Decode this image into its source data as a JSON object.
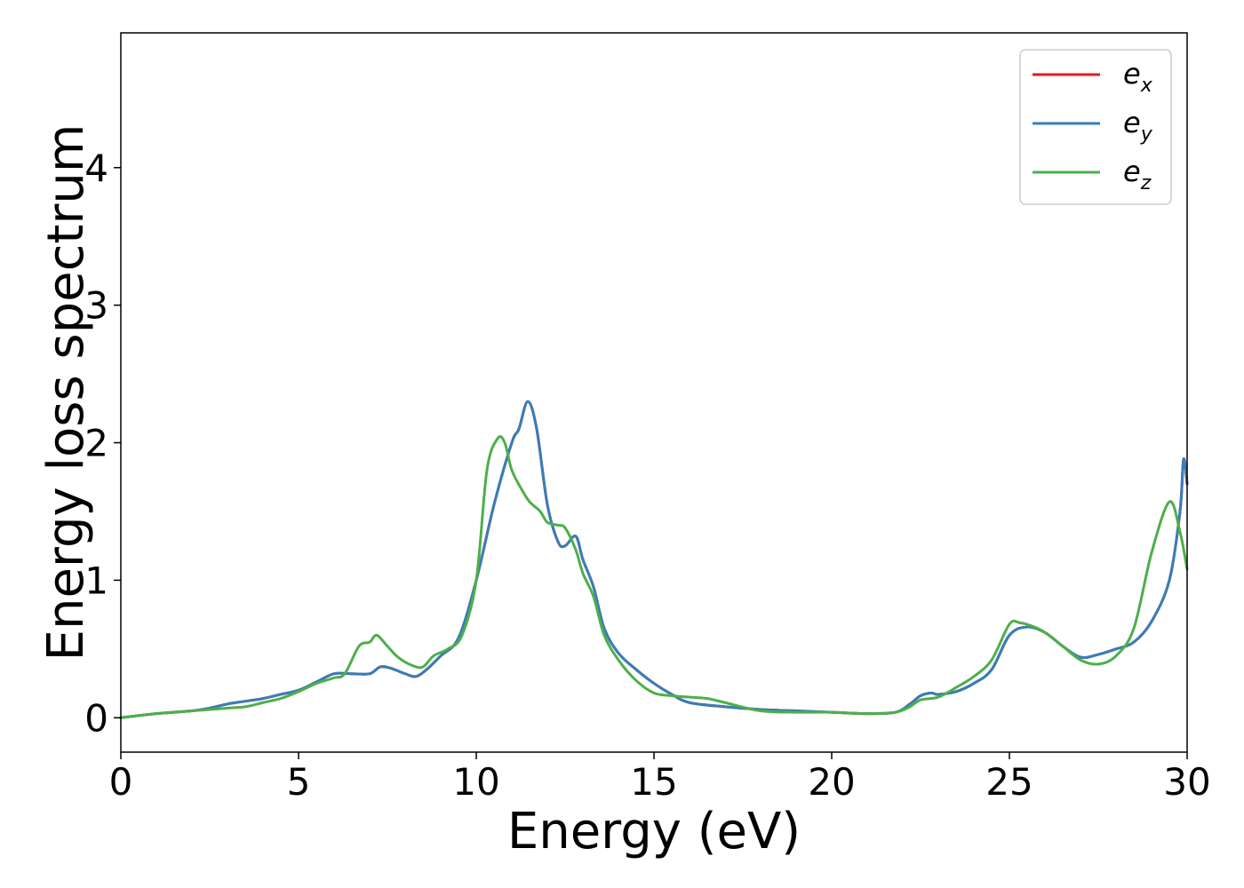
{
  "chart_data": {
    "type": "line",
    "title": "",
    "xlabel": "Energy (eV)",
    "ylabel": "Energy loss spectrum",
    "xlim": [
      0,
      30
    ],
    "ylim": [
      -0.25,
      4.98
    ],
    "xticks": [
      0,
      5,
      10,
      15,
      20,
      25,
      30
    ],
    "xtick_labels": [
      "0",
      "5",
      "10",
      "15",
      "20",
      "25",
      "30"
    ],
    "yticks": [
      0,
      1,
      2,
      3,
      4
    ],
    "ytick_labels": [
      "0",
      "1",
      "2",
      "3",
      "4"
    ],
    "grid": false,
    "legend_position": "top-right",
    "series": [
      {
        "name": "e",
        "subscript": "x",
        "color": "#e41a1c",
        "x": [
          0,
          1,
          2,
          2.5,
          3,
          3.5,
          4,
          4.5,
          5,
          5.5,
          6,
          6.5,
          7,
          7.3,
          7.6,
          8,
          8.3,
          8.6,
          9,
          9.5,
          10,
          10.5,
          11,
          11.2,
          11.45,
          11.7,
          12,
          12.3,
          12.5,
          12.8,
          13,
          13.3,
          13.6,
          14,
          14.5,
          15,
          15.5,
          16,
          17,
          18,
          19,
          20,
          21,
          21.8,
          22.2,
          22.5,
          22.8,
          23,
          23.5,
          24,
          24.5,
          25,
          25.5,
          26,
          26.5,
          27,
          27.5,
          28,
          28.5,
          29,
          29.5,
          29.8,
          29.9,
          30
        ],
        "y": [
          0,
          0.03,
          0.05,
          0.07,
          0.1,
          0.12,
          0.14,
          0.17,
          0.2,
          0.26,
          0.32,
          0.32,
          0.32,
          0.37,
          0.36,
          0.32,
          0.3,
          0.35,
          0.45,
          0.58,
          1.0,
          1.55,
          2.0,
          2.1,
          2.3,
          2.1,
          1.55,
          1.28,
          1.25,
          1.32,
          1.15,
          0.95,
          0.65,
          0.47,
          0.35,
          0.25,
          0.17,
          0.11,
          0.08,
          0.06,
          0.05,
          0.04,
          0.03,
          0.04,
          0.1,
          0.16,
          0.18,
          0.17,
          0.19,
          0.25,
          0.35,
          0.6,
          0.66,
          0.62,
          0.52,
          0.44,
          0.46,
          0.5,
          0.55,
          0.7,
          1.0,
          1.5,
          1.88,
          1.7
        ]
      },
      {
        "name": "e",
        "subscript": "y",
        "color": "#377eb8",
        "x": [
          0,
          1,
          2,
          2.5,
          3,
          3.5,
          4,
          4.5,
          5,
          5.5,
          6,
          6.5,
          7,
          7.3,
          7.6,
          8,
          8.3,
          8.6,
          9,
          9.5,
          10,
          10.5,
          11,
          11.2,
          11.45,
          11.7,
          12,
          12.3,
          12.5,
          12.8,
          13,
          13.3,
          13.6,
          14,
          14.5,
          15,
          15.5,
          16,
          17,
          18,
          19,
          20,
          21,
          21.8,
          22.2,
          22.5,
          22.8,
          23,
          23.5,
          24,
          24.5,
          25,
          25.5,
          26,
          26.5,
          27,
          27.5,
          28,
          28.5,
          29,
          29.5,
          29.8,
          29.9,
          30
        ],
        "y": [
          0,
          0.03,
          0.05,
          0.07,
          0.1,
          0.12,
          0.14,
          0.17,
          0.2,
          0.26,
          0.32,
          0.32,
          0.32,
          0.37,
          0.36,
          0.32,
          0.3,
          0.35,
          0.45,
          0.58,
          1.0,
          1.55,
          2.0,
          2.1,
          2.3,
          2.1,
          1.55,
          1.28,
          1.25,
          1.32,
          1.15,
          0.95,
          0.65,
          0.47,
          0.35,
          0.25,
          0.17,
          0.11,
          0.08,
          0.06,
          0.05,
          0.04,
          0.03,
          0.04,
          0.1,
          0.16,
          0.18,
          0.17,
          0.19,
          0.25,
          0.35,
          0.6,
          0.66,
          0.62,
          0.52,
          0.44,
          0.46,
          0.5,
          0.55,
          0.7,
          1.0,
          1.5,
          1.88,
          1.7
        ]
      },
      {
        "name": "e",
        "subscript": "z",
        "color": "#4daf4a",
        "x": [
          0,
          1,
          2,
          2.5,
          3,
          3.5,
          4,
          4.5,
          5,
          5.5,
          6,
          6.3,
          6.7,
          7,
          7.2,
          7.5,
          7.8,
          8.2,
          8.5,
          8.8,
          9.2,
          9.6,
          10,
          10.3,
          10.6,
          10.8,
          11,
          11.3,
          11.5,
          11.8,
          12,
          12.3,
          12.5,
          12.8,
          13,
          13.3,
          13.6,
          14,
          14.5,
          15,
          15.5,
          16,
          16.5,
          17,
          18,
          19,
          20,
          21,
          21.8,
          22.2,
          22.5,
          23,
          23.5,
          24,
          24.5,
          25,
          25.3,
          25.7,
          26,
          26.5,
          27,
          27.5,
          28,
          28.5,
          29,
          29.5,
          29.8,
          30
        ],
        "y": [
          0,
          0.03,
          0.05,
          0.06,
          0.07,
          0.08,
          0.11,
          0.14,
          0.19,
          0.25,
          0.29,
          0.32,
          0.52,
          0.55,
          0.6,
          0.52,
          0.44,
          0.38,
          0.37,
          0.45,
          0.5,
          0.6,
          1.0,
          1.8,
          2.03,
          2.0,
          1.8,
          1.65,
          1.57,
          1.5,
          1.42,
          1.4,
          1.38,
          1.22,
          1.05,
          0.88,
          0.6,
          0.42,
          0.27,
          0.18,
          0.16,
          0.15,
          0.14,
          0.11,
          0.05,
          0.04,
          0.04,
          0.03,
          0.04,
          0.08,
          0.13,
          0.15,
          0.22,
          0.3,
          0.42,
          0.68,
          0.69,
          0.66,
          0.62,
          0.52,
          0.42,
          0.39,
          0.45,
          0.65,
          1.2,
          1.57,
          1.35,
          1.08
        ]
      }
    ]
  }
}
